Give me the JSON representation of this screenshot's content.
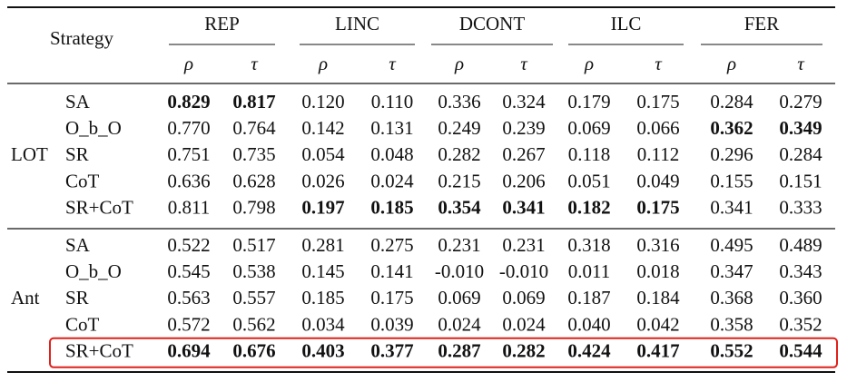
{
  "table": {
    "corner": "Strategy",
    "metric_groups": [
      "REP",
      "LINC",
      "DCONT",
      "ILC",
      "FER"
    ],
    "metrics": [
      "ρ",
      "τ"
    ],
    "row_groups": [
      {
        "label": "LOT",
        "rows": [
          {
            "name": "SA",
            "values": [
              "0.829",
              "0.817",
              "0.120",
              "0.110",
              "0.336",
              "0.324",
              "0.179",
              "0.175",
              "0.284",
              "0.279"
            ],
            "bold": [
              0,
              1
            ]
          },
          {
            "name": "O_b_O",
            "values": [
              "0.770",
              "0.764",
              "0.142",
              "0.131",
              "0.249",
              "0.239",
              "0.069",
              "0.066",
              "0.362",
              "0.349"
            ],
            "bold": [
              8,
              9
            ]
          },
          {
            "name": "SR",
            "values": [
              "0.751",
              "0.735",
              "0.054",
              "0.048",
              "0.282",
              "0.267",
              "0.118",
              "0.112",
              "0.296",
              "0.284"
            ],
            "bold": []
          },
          {
            "name": "CoT",
            "values": [
              "0.636",
              "0.628",
              "0.026",
              "0.024",
              "0.215",
              "0.206",
              "0.051",
              "0.049",
              "0.155",
              "0.151"
            ],
            "bold": []
          },
          {
            "name": "SR+CoT",
            "values": [
              "0.811",
              "0.798",
              "0.197",
              "0.185",
              "0.354",
              "0.341",
              "0.182",
              "0.175",
              "0.341",
              "0.333"
            ],
            "bold": [
              2,
              3,
              4,
              5,
              6,
              7
            ]
          }
        ]
      },
      {
        "label": "Ant",
        "highlighted_row": 4,
        "rows": [
          {
            "name": "SA",
            "values": [
              "0.522",
              "0.517",
              "0.281",
              "0.275",
              "0.231",
              "0.231",
              "0.318",
              "0.316",
              "0.495",
              "0.489"
            ],
            "bold": []
          },
          {
            "name": "O_b_O",
            "values": [
              "0.545",
              "0.538",
              "0.145",
              "0.141",
              "-0.010",
              "-0.010",
              "0.011",
              "0.018",
              "0.347",
              "0.343"
            ],
            "bold": []
          },
          {
            "name": "SR",
            "values": [
              "0.563",
              "0.557",
              "0.185",
              "0.175",
              "0.069",
              "0.069",
              "0.187",
              "0.184",
              "0.368",
              "0.360"
            ],
            "bold": []
          },
          {
            "name": "CoT",
            "values": [
              "0.572",
              "0.562",
              "0.034",
              "0.039",
              "0.024",
              "0.024",
              "0.040",
              "0.042",
              "0.358",
              "0.352"
            ],
            "bold": []
          },
          {
            "name": "SR+CoT",
            "values": [
              "0.694",
              "0.676",
              "0.403",
              "0.377",
              "0.287",
              "0.282",
              "0.424",
              "0.417",
              "0.552",
              "0.544"
            ],
            "bold": [
              0,
              1,
              2,
              3,
              4,
              5,
              6,
              7,
              8,
              9
            ]
          }
        ]
      }
    ]
  }
}
